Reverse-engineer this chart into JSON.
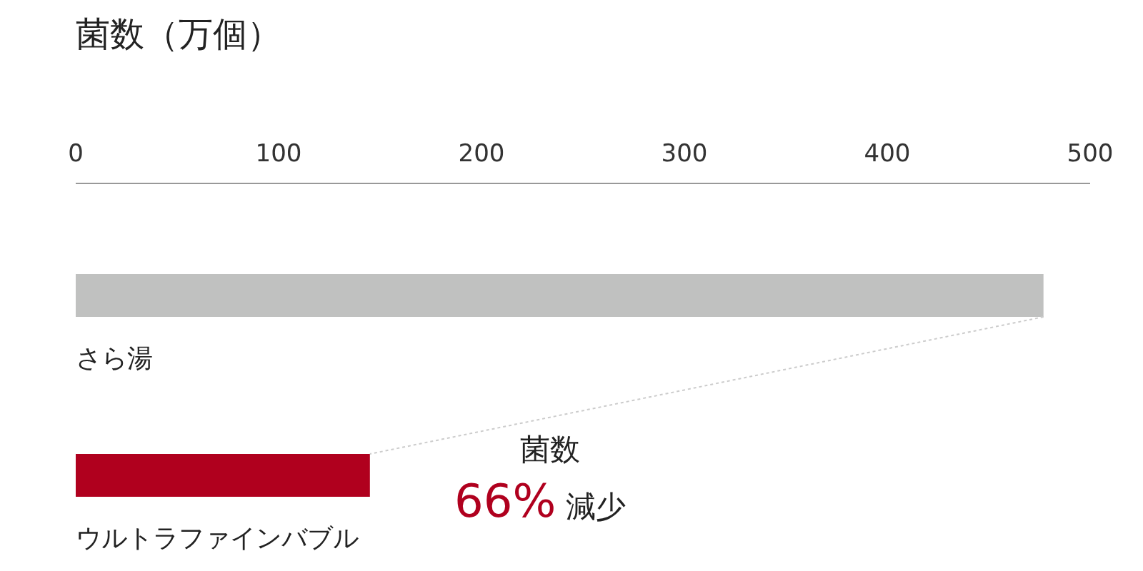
{
  "chart_data": {
    "type": "bar",
    "orientation": "horizontal",
    "title": "菌数（万個）",
    "categories": [
      "さら湯",
      "ウルトラファインバブル"
    ],
    "values": [
      477,
      145
    ],
    "colors": [
      "#c0c1c0",
      "#b0001e"
    ],
    "xlim": [
      0,
      500
    ],
    "xticks": [
      0,
      100,
      200,
      300,
      400,
      500
    ],
    "annotations": [
      "菌数",
      "66% 減少"
    ]
  }
}
